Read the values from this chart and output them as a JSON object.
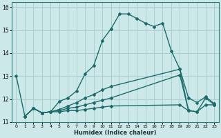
{
  "xlabel": "Humidex (Indice chaleur)",
  "background_color": "#cce8e8",
  "grid_color": "#a8d0d0",
  "line_color": "#1a6b6b",
  "xlim": [
    -0.5,
    23.5
  ],
  "ylim": [
    11.0,
    16.2
  ],
  "yticks": [
    11,
    12,
    13,
    14,
    15,
    16
  ],
  "xticks": [
    0,
    1,
    2,
    3,
    4,
    5,
    6,
    7,
    8,
    9,
    10,
    11,
    12,
    13,
    14,
    15,
    16,
    17,
    18,
    19,
    20,
    21,
    22,
    23
  ],
  "lines": [
    {
      "x": [
        0,
        1,
        2,
        3,
        4,
        5,
        6,
        7,
        8,
        9,
        10,
        11,
        12,
        13,
        14,
        15,
        16,
        17,
        18,
        19,
        20
      ],
      "y": [
        13.0,
        11.25,
        11.6,
        11.4,
        11.45,
        11.9,
        12.05,
        12.35,
        13.1,
        13.45,
        14.55,
        15.05,
        15.7,
        15.7,
        15.5,
        15.3,
        15.15,
        15.3,
        14.1,
        13.3,
        11.5
      ],
      "style": "-",
      "marker": "D",
      "markersize": 2.0,
      "linewidth": 1.0
    },
    {
      "x": [
        1,
        2,
        3,
        4,
        5,
        6,
        7,
        8,
        9,
        10,
        11,
        19,
        20,
        21,
        22,
        23
      ],
      "y": [
        11.25,
        11.6,
        11.4,
        11.45,
        11.55,
        11.7,
        11.85,
        12.05,
        12.2,
        12.4,
        12.55,
        13.3,
        12.05,
        11.85,
        12.1,
        11.8
      ],
      "style": "-",
      "marker": "D",
      "markersize": 2.0,
      "linewidth": 1.0
    },
    {
      "x": [
        1,
        2,
        3,
        4,
        5,
        6,
        7,
        8,
        9,
        10,
        11,
        19,
        20,
        21,
        22,
        23
      ],
      "y": [
        11.25,
        11.6,
        11.4,
        11.45,
        11.5,
        11.6,
        11.65,
        11.75,
        11.85,
        11.95,
        12.05,
        13.05,
        11.5,
        11.45,
        12.05,
        11.75
      ],
      "style": "-",
      "marker": "D",
      "markersize": 2.0,
      "linewidth": 1.0
    },
    {
      "x": [
        2,
        3,
        4,
        5,
        6,
        7,
        8,
        9,
        10,
        11,
        19,
        20,
        21,
        22,
        23
      ],
      "y": [
        11.6,
        11.4,
        11.45,
        11.45,
        11.5,
        11.5,
        11.55,
        11.6,
        11.65,
        11.7,
        11.75,
        11.5,
        11.45,
        11.75,
        11.75
      ],
      "style": "-",
      "marker": "D",
      "markersize": 2.0,
      "linewidth": 1.0
    }
  ]
}
